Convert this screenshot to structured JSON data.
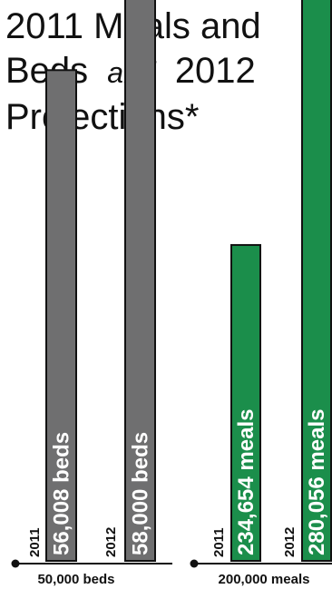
{
  "title": {
    "line1": "2011 Meals and",
    "line2_part1": "Beds",
    "line2_italic": "and",
    "line2_part2": "2012",
    "line3": "Projections*"
  },
  "colors": {
    "beds_bar": "#6f6f70",
    "meals_bar": "#1b8e4b",
    "text": "#111111",
    "bar_stroke": "#111111",
    "bar_text": "#ffffff"
  },
  "chart_data": [
    {
      "type": "bar",
      "title": "",
      "categories": [
        "2011",
        "2012"
      ],
      "values": [
        56008,
        58000
      ],
      "value_labels": [
        "56,008 beds",
        "58,000 beds"
      ],
      "axis_label": "50,000 beds",
      "baseline": 50000,
      "ylim": [
        50000,
        62000
      ],
      "grid": false
    },
    {
      "type": "bar",
      "title": "",
      "categories": [
        "2011",
        "2012"
      ],
      "values": [
        234654,
        280056
      ],
      "value_labels": [
        "234,654 meals",
        "280,056 meals"
      ],
      "axis_label": "200,000 meals",
      "baseline": 200000,
      "ylim": [
        200000,
        280056
      ],
      "grid": false
    }
  ]
}
